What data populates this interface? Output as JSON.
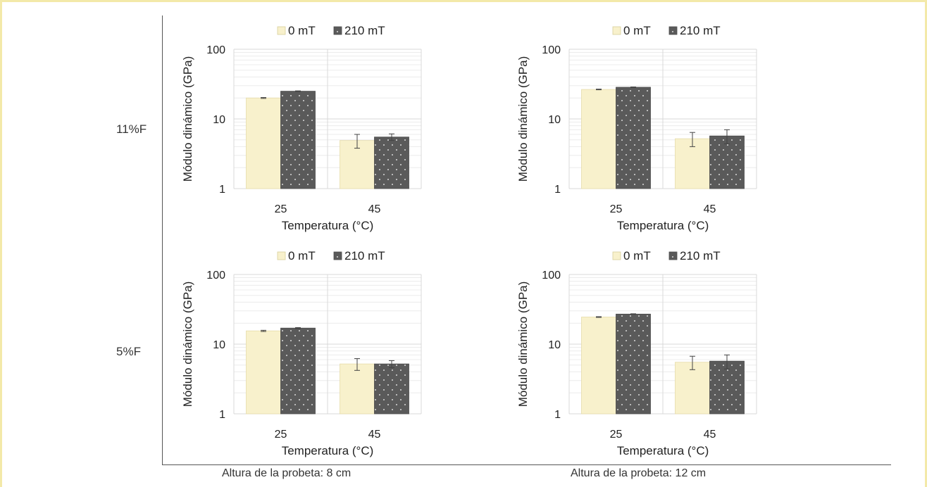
{
  "row_labels": [
    "11%F",
    "5%F"
  ],
  "column_labels": [
    "Altura de la probeta: 8 cm",
    "Altura de la probeta: 12 cm"
  ],
  "colors": {
    "series_0mT": "#f8f1cc",
    "series_210mT": "#5a5a5a",
    "grid": "#d9d9d9",
    "frame": "#f3e9a9"
  },
  "chart_data": [
    {
      "type": "bar",
      "panel": "11%F / Altura de la probeta: 8 cm",
      "categories": [
        "25",
        "45"
      ],
      "series": [
        {
          "name": "0 mT",
          "values": [
            20,
            4.9
          ],
          "errors": [
            0.3,
            1.1
          ]
        },
        {
          "name": "210 mT",
          "values": [
            25,
            5.5
          ],
          "errors": [
            0.3,
            0.6
          ]
        }
      ],
      "xlabel": "Temperatura (°C)",
      "ylabel": "Módulo dinámico (GPa)",
      "yscale": "log",
      "ylim": [
        1,
        100
      ],
      "yticks": [
        "1",
        "10",
        "100"
      ],
      "legend": "top",
      "grid": true
    },
    {
      "type": "bar",
      "panel": "11%F / Altura de la probeta: 12 cm",
      "categories": [
        "25",
        "45"
      ],
      "series": [
        {
          "name": "0 mT",
          "values": [
            26.5,
            5.2
          ],
          "errors": [
            0.3,
            1.2
          ]
        },
        {
          "name": "210 mT",
          "values": [
            28.5,
            5.7
          ],
          "errors": [
            0.3,
            1.3
          ]
        }
      ],
      "xlabel": "Temperatura (°C)",
      "ylabel": "Módulo dinámico (GPa)",
      "yscale": "log",
      "ylim": [
        1,
        100
      ],
      "yticks": [
        "1",
        "10",
        "100"
      ],
      "legend": "top",
      "grid": true
    },
    {
      "type": "bar",
      "panel": "5%F / Altura de la probeta: 8 cm",
      "categories": [
        "25",
        "45"
      ],
      "series": [
        {
          "name": "0 mT",
          "values": [
            15.5,
            5.2
          ],
          "errors": [
            0.3,
            1.0
          ]
        },
        {
          "name": "210 mT",
          "values": [
            17,
            5.2
          ],
          "errors": [
            0.3,
            0.6
          ]
        }
      ],
      "xlabel": "Temperatura (°C)",
      "ylabel": "Módulo dinámico (GPa)",
      "yscale": "log",
      "ylim": [
        1,
        100
      ],
      "yticks": [
        "1",
        "10",
        "100"
      ],
      "legend": "top",
      "grid": true
    },
    {
      "type": "bar",
      "panel": "5%F / Altura de la probeta: 12 cm",
      "categories": [
        "25",
        "45"
      ],
      "series": [
        {
          "name": "0 mT",
          "values": [
            24.5,
            5.5
          ],
          "errors": [
            0.3,
            1.2
          ]
        },
        {
          "name": "210 mT",
          "values": [
            27,
            5.7
          ],
          "errors": [
            0.3,
            1.3
          ]
        }
      ],
      "xlabel": "Temperatura (°C)",
      "ylabel": "Módulo dinámico (GPa)",
      "yscale": "log",
      "ylim": [
        1,
        100
      ],
      "yticks": [
        "1",
        "10",
        "100"
      ],
      "legend": "top",
      "grid": true
    }
  ]
}
